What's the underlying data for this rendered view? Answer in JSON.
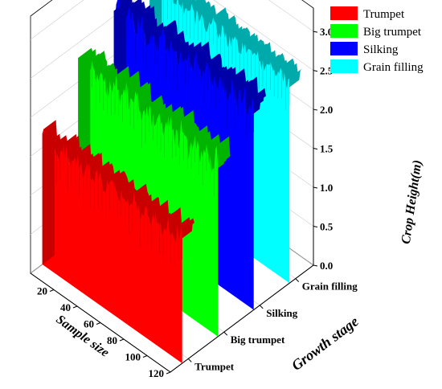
{
  "chart_data": {
    "type": "3d-wall",
    "zlabel": "Crop Height(m)",
    "ylabel": "Sample size",
    "xlabel": "Growth stage",
    "zlim": [
      0,
      3.0
    ],
    "zticks": [
      "0.0",
      "0.5",
      "1.0",
      "1.5",
      "2.0",
      "2.5",
      "3.0"
    ],
    "ylim": [
      0,
      120
    ],
    "yticks": [
      "20",
      "40",
      "60",
      "80",
      "100",
      "120"
    ],
    "categories": [
      "Trumpet",
      "Big trumpet",
      "Silking",
      "Grain filling"
    ],
    "legend_position": "top-right",
    "grid": true,
    "series": [
      {
        "name": "Trumpet",
        "color": "#ff0000",
        "side_color": "#c80000",
        "mean": 1.6,
        "spread": 0.14
      },
      {
        "name": "Big trumpet",
        "color": "#00ff00",
        "side_color": "#00b400",
        "mean": 2.25,
        "spread": 0.2
      },
      {
        "name": "Silking",
        "color": "#0000ff",
        "side_color": "#0000a8",
        "mean": 2.6,
        "spread": 0.2
      },
      {
        "name": "Grain filling",
        "color": "#00ffff",
        "side_color": "#00aaaa",
        "mean": 2.6,
        "spread": 0.12
      }
    ]
  }
}
